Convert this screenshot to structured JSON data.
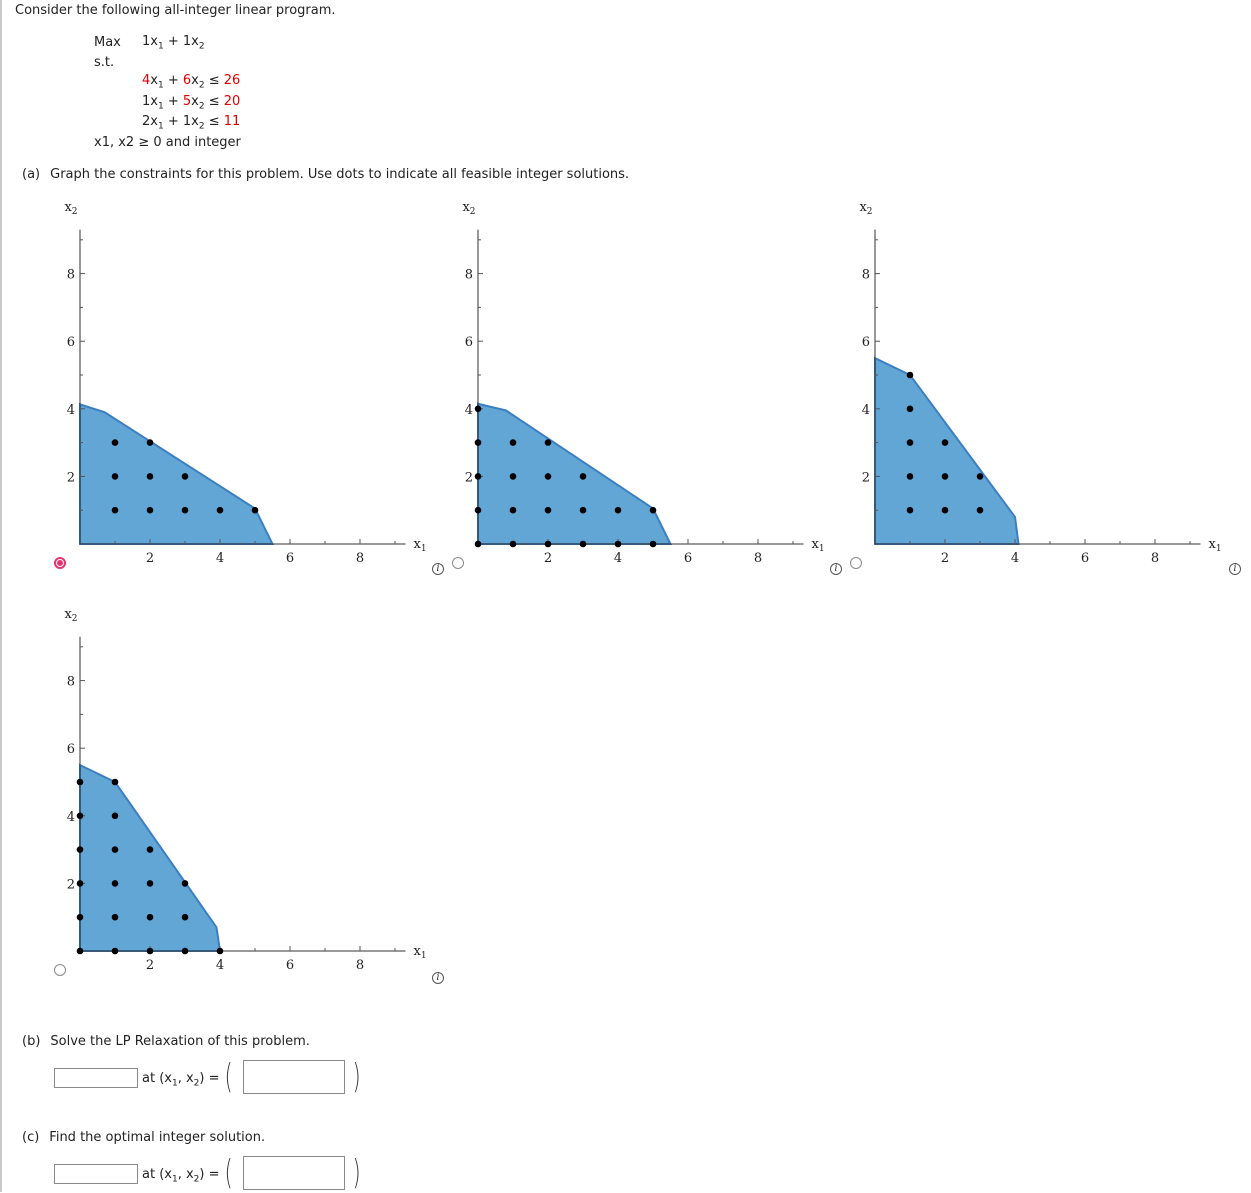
{
  "intro": "Consider the following all-integer linear program.",
  "model": {
    "max_label": "Max",
    "objective": [
      "1",
      "x",
      "1",
      " + ",
      "1",
      "x",
      "2"
    ],
    "st_label": "s.t.",
    "constraints": [
      {
        "a": "4",
        "b": "6",
        "rhs": "26"
      },
      {
        "a": "1",
        "b": "5",
        "rhs": "20"
      },
      {
        "a": "2",
        "b": "1",
        "rhs": "11"
      }
    ],
    "nonneg": "x1, x2 ≥ 0 and integer"
  },
  "part_a": {
    "label": "(a)",
    "text": "Graph the constraints for this problem. Use dots to indicate all feasible integer solutions."
  },
  "graphs": [
    {
      "id": "A",
      "selected": true,
      "region": [
        [
          0,
          0
        ],
        [
          0,
          4.13
        ],
        [
          0.7,
          3.9
        ],
        [
          5,
          1.05
        ],
        [
          5.5,
          0
        ]
      ],
      "dots": [
        [
          1,
          1
        ],
        [
          2,
          1
        ],
        [
          3,
          1
        ],
        [
          4,
          1
        ],
        [
          5,
          1
        ],
        [
          1,
          2
        ],
        [
          2,
          2
        ],
        [
          3,
          2
        ],
        [
          1,
          3
        ],
        [
          2,
          3
        ]
      ]
    },
    {
      "id": "B",
      "selected": false,
      "region": [
        [
          0,
          0
        ],
        [
          0,
          4.15
        ],
        [
          0.8,
          3.95
        ],
        [
          5,
          1.05
        ],
        [
          5.5,
          0
        ]
      ],
      "dots": [
        [
          0,
          0
        ],
        [
          1,
          0
        ],
        [
          2,
          0
        ],
        [
          3,
          0
        ],
        [
          4,
          0
        ],
        [
          5,
          0
        ],
        [
          0,
          1
        ],
        [
          1,
          1
        ],
        [
          2,
          1
        ],
        [
          3,
          1
        ],
        [
          4,
          1
        ],
        [
          5,
          1
        ],
        [
          0,
          2
        ],
        [
          1,
          2
        ],
        [
          2,
          2
        ],
        [
          3,
          2
        ],
        [
          0,
          3
        ],
        [
          1,
          3
        ],
        [
          2,
          3
        ],
        [
          0,
          4
        ]
      ]
    },
    {
      "id": "C",
      "selected": false,
      "region": [
        [
          0,
          0
        ],
        [
          0,
          5.5
        ],
        [
          1,
          5
        ],
        [
          4,
          0.8
        ],
        [
          4.1,
          0
        ]
      ],
      "dots": [
        [
          1,
          1
        ],
        [
          2,
          1
        ],
        [
          3,
          1
        ],
        [
          1,
          2
        ],
        [
          2,
          2
        ],
        [
          3,
          2
        ],
        [
          1,
          3
        ],
        [
          2,
          3
        ],
        [
          1,
          4
        ],
        [
          1,
          5
        ]
      ]
    },
    {
      "id": "D",
      "selected": false,
      "region": [
        [
          0,
          0
        ],
        [
          0,
          5.5
        ],
        [
          1,
          5
        ],
        [
          3.9,
          0.7
        ],
        [
          4,
          0
        ]
      ],
      "dots": [
        [
          0,
          0
        ],
        [
          1,
          0
        ],
        [
          2,
          0
        ],
        [
          3,
          0
        ],
        [
          4,
          0
        ],
        [
          0,
          1
        ],
        [
          1,
          1
        ],
        [
          2,
          1
        ],
        [
          3,
          1
        ],
        [
          0,
          2
        ],
        [
          1,
          2
        ],
        [
          2,
          2
        ],
        [
          3,
          2
        ],
        [
          0,
          3
        ],
        [
          1,
          3
        ],
        [
          2,
          3
        ],
        [
          0,
          4
        ],
        [
          1,
          4
        ],
        [
          0,
          5
        ],
        [
          1,
          5
        ]
      ]
    }
  ],
  "axes": {
    "x_label": "x1",
    "y_label": "x2",
    "x_ticks": [
      "2",
      "4",
      "6",
      "8"
    ],
    "y_ticks": [
      "2",
      "4",
      "6",
      "8"
    ],
    "xlim": [
      0,
      9.3
    ],
    "ylim": [
      0,
      9.3
    ]
  },
  "part_b": {
    "label": "(b)",
    "text": "Solve the LP Relaxation of this problem.",
    "value": "",
    "point": "",
    "at_text": "at (x1, x2) ="
  },
  "part_c": {
    "label": "(c)",
    "text": "Find the optimal integer solution.",
    "value": "",
    "point": "",
    "at_text": "at (x1, x2) ="
  },
  "colors": {
    "fill": "#62a6d6",
    "stroke": "#3b7fc0",
    "dot": "#000000",
    "radio_selected": "#e63370"
  },
  "icons": {
    "info": "i"
  }
}
